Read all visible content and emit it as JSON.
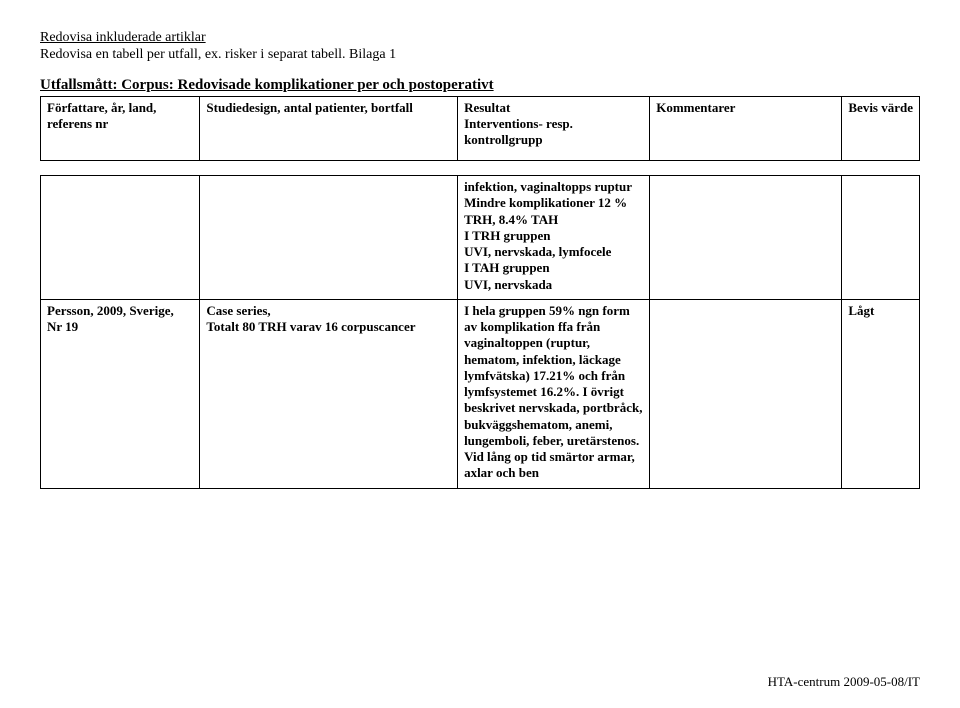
{
  "header": {
    "title": "Redovisa inkluderade artiklar",
    "subtitle": "Redovisa en tabell per utfall, ex. risker i separat tabell. Bilaga 1",
    "section": "Utfallsmått: Corpus: Redovisade komplikationer per och postoperativt"
  },
  "columns": {
    "c1": "Författare, år, land, referens nr",
    "c2": "Studiedesign, antal patienter, bortfall",
    "c3": "Resultat\nInterventions- resp. kontrollgrupp",
    "c4": "Kommentarer",
    "c5": "Bevis värde"
  },
  "rows": [
    {
      "c1": "",
      "c2": "",
      "c3": "infektion, vaginaltopps ruptur\nMindre komplikationer 12 % TRH, 8.4% TAH\nI TRH gruppen\nUVI, nervskada, lymfocele\nI TAH gruppen\nUVI, nervskada",
      "c4": "",
      "c5": ""
    },
    {
      "c1": "Persson, 2009, Sverige,\nNr 19",
      "c2": "Case series,\nTotalt 80 TRH varav 16 corpuscancer",
      "c3": "I hela gruppen 59% ngn form av komplikation ffa från vaginaltoppen (ruptur, hematom, infektion, läckage lymfvätska) 17.21% och från lymfsystemet 16.2%. I övrigt beskrivet nervskada, portbråck, bukväggshematom, anemi, lungemboli, feber, uretärstenos. Vid lång op tid smärtor armar, axlar och ben",
      "c4": "",
      "c5": "Lågt"
    }
  ],
  "footer": "HTA-centrum 2009-05-08/IT",
  "style": {
    "font_family": "Times New Roman",
    "base_fontsize_pt": 11,
    "header_underline": true,
    "border_color": "#000000",
    "background_color": "#ffffff",
    "col_widths_pct": [
      18,
      30,
      22,
      22,
      8
    ]
  }
}
